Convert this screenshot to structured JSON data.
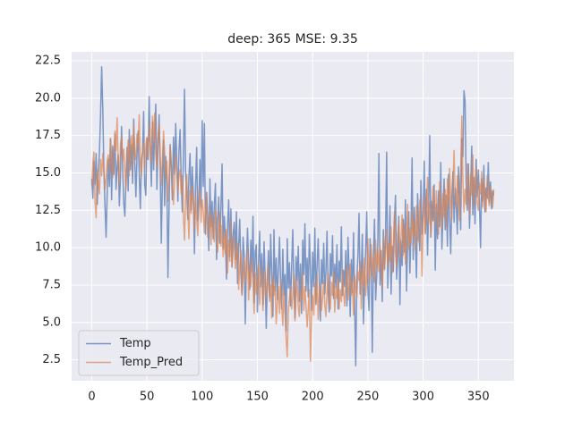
{
  "chart_data": {
    "type": "line",
    "title": "deep: 365 MSE: 9.35",
    "xlim": [
      -18.2,
      382.2
    ],
    "xticks": [
      0,
      50,
      100,
      150,
      200,
      250,
      300,
      350
    ],
    "ylim": [
      1.1,
      23.1
    ],
    "yticks": [
      2.5,
      {
        "value": 5,
        "label": "5.0"
      },
      7.5,
      {
        "value": 10,
        "label": "10.0"
      },
      12.5,
      {
        "value": 15,
        "label": "15.0"
      },
      17.5,
      {
        "value": 20,
        "label": "20.0"
      },
      22.5
    ],
    "grid": true,
    "legend": "lower left",
    "series": [
      {
        "name": "Temp",
        "color": "#4c72b0",
        "values": [
          14.6,
          13.3,
          15.8,
          14.2,
          16.3,
          12.9,
          15.1,
          16.4,
          18.9,
          22.1,
          19.3,
          15.2,
          12.8,
          10.7,
          13.6,
          15.9,
          14.1,
          17.3,
          13.2,
          16.8,
          14.9,
          17.6,
          13.9,
          15.4,
          16.2,
          12.8,
          14.7,
          18.1,
          15.3,
          13.0,
          12.1,
          14.5,
          16.7,
          13.8,
          17.9,
          15.2,
          16.9,
          14.3,
          18.6,
          15.7,
          13.4,
          16.2,
          17.8,
          14.9,
          12.6,
          15.8,
          16.4,
          19.1,
          14.2,
          13.5,
          17.3,
          15.9,
          20.1,
          16.6,
          14.1,
          18.4,
          15.2,
          17.7,
          19.6,
          13.9,
          16.8,
          18.9,
          15.3,
          10.3,
          14.7,
          17.2,
          12.8,
          16.1,
          14.4,
          8.0,
          12.6,
          16.9,
          15.5,
          13.2,
          17.4,
          14.9,
          18.3,
          15.8,
          13.1,
          16.5,
          17.9,
          14.6,
          12.4,
          16.2,
          20.6,
          15.1,
          13.7,
          11.9,
          14.8,
          16.3,
          12.5,
          15.4,
          13.6,
          9.6,
          14.2,
          16.7,
          11.8,
          13.3,
          15.9,
          12.7,
          18.5,
          14.1,
          18.3,
          10.9,
          13.7,
          12.2,
          9.8,
          14.6,
          11.4,
          13.1,
          10.6,
          12.9,
          14.3,
          9.2,
          11.8,
          13.4,
          10.3,
          12.7,
          15.6,
          9.9,
          12.1,
          10.8,
          7.9,
          11.5,
          13.2,
          9.4,
          12.6,
          8.7,
          10.9,
          11.7,
          9.2,
          12.4,
          7.6,
          10.1,
          11.9,
          8.3,
          6.9,
          10.7,
          9.5,
          4.9,
          8.8,
          11.3,
          9.1,
          7.2,
          10.5,
          8.4,
          12.1,
          6.3,
          9.7,
          10.2,
          5.7,
          8.9,
          11.1,
          7.4,
          9.6,
          6.2,
          10.4,
          8.1,
          4.6,
          7.9,
          9.8,
          6.7,
          10.9,
          8.3,
          5.4,
          11.2,
          7.1,
          9.3,
          6.5,
          8.6,
          10.7,
          7.8,
          5.9,
          9.9,
          6.8,
          8.2,
          4.4,
          10.6,
          7.3,
          9.0,
          6.1,
          8.7,
          11.2,
          7.5,
          5.3,
          9.4,
          7.8,
          10.1,
          6.4,
          8.9,
          5.6,
          10.5,
          8.2,
          11.6,
          7.1,
          9.3,
          6.7,
          10.9,
          8.5,
          5.8,
          9.7,
          7.4,
          11.3,
          6.2,
          8.8,
          10.6,
          7.9,
          5.1,
          9.2,
          7.6,
          10.3,
          6.9,
          8.4,
          11.1,
          7.2,
          5.7,
          9.6,
          8.1,
          10.8,
          6.6,
          8.9,
          7.3,
          10.2,
          5.9,
          9.1,
          7.7,
          11.4,
          6.8,
          8.5,
          7.4,
          9.8,
          6.1,
          10.7,
          8.3,
          5.4,
          9.2,
          7.0,
          11.0,
          6.2,
          2.1,
          7.8,
          9.5,
          12.3,
          6.9,
          8.4,
          10.9,
          4.9,
          7.6,
          9.9,
          12.4,
          7.2,
          5.8,
          10.6,
          8.7,
          3.0,
          9.3,
          11.9,
          6.5,
          8.1,
          10.4,
          16.3,
          7.5,
          9.8,
          6.4,
          11.2,
          8.6,
          10.9,
          16.4,
          7.3,
          9.6,
          12.8,
          6.9,
          10.1,
          8.4,
          11.7,
          13.5,
          7.9,
          9.3,
          12.1,
          6.2,
          10.5,
          8.8,
          11.9,
          9.7,
          13.2,
          7.1,
          10.6,
          12.4,
          8.3,
          11.1,
          16.0,
          9.2,
          12.7,
          10.4,
          8.0,
          13.6,
          11.3,
          9.8,
          14.5,
          10.9,
          12.2,
          15.8,
          11.0,
          13.9,
          9.5,
          12.6,
          17.5,
          10.7,
          13.1,
          11.8,
          14.2,
          8.5,
          12.9,
          10.6,
          13.8,
          11.4,
          15.7,
          9.9,
          12.3,
          14.6,
          11.2,
          13.5,
          10.1,
          14.9,
          12.0,
          9.6,
          13.3,
          15.1,
          11.7,
          14.0,
          12.8,
          10.9,
          15.4,
          13.6,
          11.2,
          17.3,
          16.1,
          20.5,
          19.8,
          14.2,
          12.5,
          15.6,
          11.3,
          13.9,
          16.8,
          12.2,
          14.7,
          11.6,
          15.9,
          13.4,
          15.2,
          12.9,
          10.0,
          14.6,
          13.1,
          15.5,
          12.4,
          14.0,
          13.3,
          15.7,
          13.0,
          14.4,
          12.6,
          13.8,
          13.5
        ]
      },
      {
        "name": "Temp_Pred",
        "color": "#dd8452",
        "values": [
          14.2,
          15.6,
          16.4,
          13.1,
          12.0,
          15.2,
          14.4,
          13.6,
          15.9,
          14.8,
          16.3,
          15.1,
          13.9,
          14.6,
          15.8,
          16.2,
          15.0,
          17.3,
          16.1,
          14.7,
          15.4,
          17.8,
          16.5,
          18.7,
          15.6,
          14.3,
          16.9,
          17.4,
          15.8,
          16.6,
          15.1,
          13.9,
          16.2,
          17.2,
          14.8,
          16.9,
          17.5,
          15.4,
          18.2,
          16.3,
          15.9,
          17.6,
          16.8,
          18.9,
          15.6,
          14.8,
          16.4,
          17.1,
          15.3,
          16.8,
          17.4,
          16.0,
          18.2,
          16.9,
          15.7,
          18.8,
          17.3,
          19.0,
          16.2,
          15.4,
          17.5,
          18.3,
          16.1,
          14.2,
          15.9,
          17.8,
          16.4,
          14.7,
          15.8,
          13.1,
          14.6,
          16.8,
          15.7,
          14.3,
          12.9,
          14.5,
          16.3,
          15.1,
          13.8,
          14.9,
          15.2,
          13.6,
          14.8,
          12.1,
          10.5,
          13.4,
          14.9,
          12.7,
          10.6,
          13.8,
          12.3,
          14.1,
          12.9,
          11.2,
          13.5,
          12.0,
          10.8,
          12.6,
          13.9,
          11.7,
          13.2,
          12.4,
          11.0,
          12.8,
          13.6,
          10.7,
          11.9,
          12.5,
          10.2,
          12.1,
          11.3,
          10.4,
          12.6,
          11.8,
          9.7,
          11.0,
          12.3,
          10.1,
          11.5,
          9.4,
          10.9,
          9.6,
          11.2,
          8.3,
          10.5,
          9.1,
          11.8,
          8.8,
          9.9,
          10.7,
          8.6,
          9.4,
          10.3,
          7.2,
          8.9,
          9.8,
          6.8,
          8.1,
          9.3,
          7.6,
          8.4,
          9.9,
          6.5,
          8.7,
          7.4,
          9.2,
          7.8,
          5.6,
          8.3,
          6.9,
          7.7,
          9.0,
          6.2,
          7.9,
          8.6,
          5.8,
          7.3,
          8.4,
          6.7,
          7.1,
          8.8,
          6.4,
          7.5,
          5.3,
          8.1,
          6.8,
          7.6,
          4.9,
          6.3,
          7.4,
          5.6,
          7.9,
          6.1,
          4.8,
          7.2,
          5.5,
          3.9,
          2.7,
          5.8,
          6.6,
          7.3,
          5.9,
          6.8,
          8.2,
          5.1,
          6.7,
          7.9,
          6.0,
          5.4,
          7.1,
          6.5,
          8.3,
          5.8,
          7.4,
          6.1,
          4.7,
          5.9,
          7.2,
          2.4,
          5.3,
          6.8,
          5.5,
          7.6,
          6.3,
          8.1,
          5.2,
          6.9,
          7.5,
          5.8,
          6.6,
          7.8,
          6.2,
          5.4,
          7.1,
          8.3,
          6.5,
          5.9,
          7.7,
          6.8,
          8.4,
          5.7,
          7.3,
          6.6,
          8.0,
          5.9,
          7.2,
          6.4,
          8.5,
          7.0,
          6.1,
          7.6,
          8.8,
          6.5,
          7.4,
          8.9,
          6.8,
          7.7,
          5.5,
          8.2,
          7.3,
          6.7,
          8.4,
          7.8,
          9.1,
          5.9,
          8.6,
          7.5,
          9.3,
          6.8,
          8.0,
          10.6,
          7.6,
          8.9,
          10.2,
          8.1,
          9.4,
          7.7,
          10.5,
          8.6,
          9.8,
          8.4,
          10.1,
          9.0,
          7.3,
          10.7,
          8.5,
          9.6,
          11.2,
          8.8,
          10.3,
          9.1,
          11.4,
          8.3,
          10.0,
          12.4,
          9.6,
          8.7,
          10.9,
          11.8,
          9.3,
          10.6,
          12.2,
          9.5,
          11.6,
          8.9,
          10.8,
          12.9,
          9.9,
          11.3,
          10.2,
          12.5,
          10.7,
          11.9,
          9.8,
          12.8,
          11.1,
          10.4,
          13.2,
          11.8,
          8.1,
          11.7,
          13.5,
          10.9,
          12.4,
          14.7,
          11.6,
          13.0,
          10.8,
          12.6,
          14.1,
          12.9,
          11.5,
          13.8,
          12.2,
          10.9,
          14.4,
          12.7,
          11.3,
          13.6,
          12.1,
          13.9,
          11.4,
          14.6,
          12.8,
          15.3,
          13.1,
          11.9,
          14.2,
          16.5,
          13.4,
          12.6,
          14.8,
          13.3,
          11.8,
          15.2,
          18.8,
          14.5,
          12.4,
          13.9,
          12.9,
          15.6,
          13.7,
          12.2,
          14.9,
          13.5,
          16.2,
          12.8,
          14.1,
          15.4,
          13.0,
          12.5,
          14.3,
          13.6,
          15.1,
          12.7,
          14.5,
          13.2,
          12.4,
          14.8,
          13.3,
          12.8,
          14.1,
          13.5,
          12.7,
          13.9
        ]
      }
    ]
  }
}
